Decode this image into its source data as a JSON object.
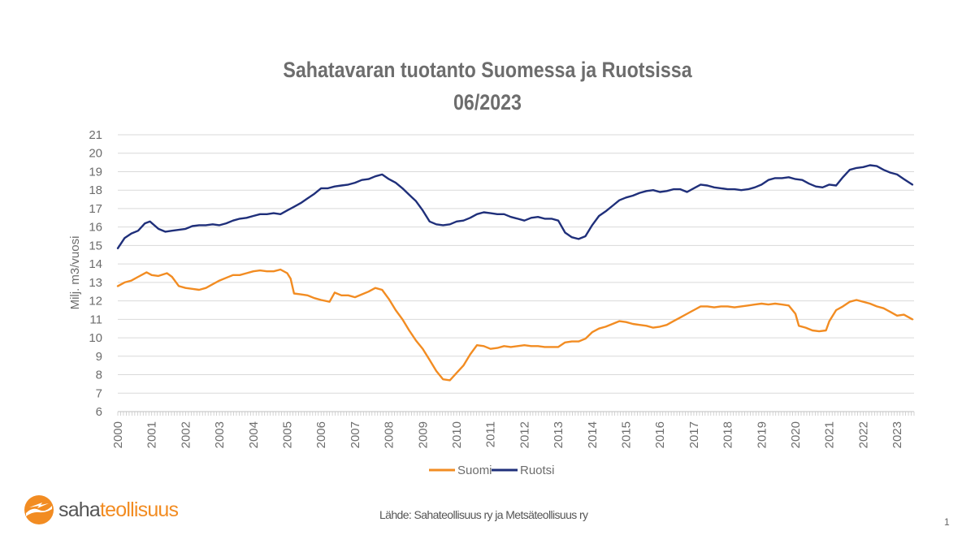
{
  "title_line1": "Sahatavaran tuotanto Suomessa ja Ruotsissa",
  "title_line2": "06/2023",
  "source": "Lähde: Sahateollisuus ry ja Metsäteollisuus ry",
  "page_number": "1",
  "logo": {
    "part1": "saha",
    "part2": "teollisuus"
  },
  "colors": {
    "suomi": "#f28c22",
    "ruotsi": "#1f2f7a",
    "grid": "#d9d9d9",
    "text": "#6d6d6d"
  },
  "chart_data": {
    "type": "line",
    "ylabel": "Milj. m3/vuosi",
    "xlabel": "",
    "ylim": [
      6,
      21
    ],
    "xlim": [
      2000.0,
      2023.5
    ],
    "yticks": [
      6,
      7,
      8,
      9,
      10,
      11,
      12,
      13,
      14,
      15,
      16,
      17,
      18,
      19,
      20,
      21
    ],
    "xticks": [
      "2000",
      "2001",
      "2002",
      "2003",
      "2004",
      "2005",
      "2006",
      "2007",
      "2008",
      "2009",
      "2010",
      "2011",
      "2012",
      "2013",
      "2014",
      "2015",
      "2016",
      "2017",
      "2018",
      "2019",
      "2020",
      "2021",
      "2022",
      "2023"
    ],
    "grid": true,
    "legend_position": "bottom",
    "series": [
      {
        "name": "Suomi",
        "x": [
          2000.0,
          2000.2,
          2000.4,
          2000.6,
          2000.85,
          2001.0,
          2001.2,
          2001.45,
          2001.6,
          2001.8,
          2002.0,
          2002.2,
          2002.4,
          2002.6,
          2002.8,
          2003.0,
          2003.2,
          2003.4,
          2003.6,
          2003.8,
          2004.0,
          2004.2,
          2004.4,
          2004.6,
          2004.8,
          2005.0,
          2005.1,
          2005.2,
          2005.4,
          2005.6,
          2005.8,
          2006.0,
          2006.25,
          2006.4,
          2006.6,
          2006.8,
          2007.0,
          2007.2,
          2007.4,
          2007.6,
          2007.8,
          2008.0,
          2008.2,
          2008.4,
          2008.6,
          2008.8,
          2009.0,
          2009.2,
          2009.4,
          2009.6,
          2009.8,
          2010.0,
          2010.2,
          2010.4,
          2010.6,
          2010.8,
          2011.0,
          2011.2,
          2011.4,
          2011.6,
          2011.8,
          2012.0,
          2012.2,
          2012.4,
          2012.6,
          2012.8,
          2013.0,
          2013.2,
          2013.4,
          2013.6,
          2013.8,
          2014.0,
          2014.2,
          2014.4,
          2014.6,
          2014.8,
          2015.0,
          2015.2,
          2015.4,
          2015.6,
          2015.8,
          2016.0,
          2016.2,
          2016.4,
          2016.6,
          2016.8,
          2017.0,
          2017.2,
          2017.4,
          2017.6,
          2017.8,
          2018.0,
          2018.2,
          2018.4,
          2018.6,
          2018.8,
          2019.0,
          2019.2,
          2019.4,
          2019.6,
          2019.8,
          2020.0,
          2020.1,
          2020.3,
          2020.5,
          2020.7,
          2020.9,
          2021.0,
          2021.2,
          2021.4,
          2021.6,
          2021.8,
          2022.0,
          2022.2,
          2022.4,
          2022.6,
          2022.8,
          2023.0,
          2023.2,
          2023.45
        ],
        "values": [
          12.8,
          13.0,
          13.1,
          13.3,
          13.55,
          13.4,
          13.35,
          13.5,
          13.3,
          12.8,
          12.7,
          12.65,
          12.6,
          12.7,
          12.9,
          13.1,
          13.25,
          13.4,
          13.4,
          13.5,
          13.6,
          13.65,
          13.6,
          13.6,
          13.7,
          13.5,
          13.2,
          12.4,
          12.35,
          12.3,
          12.15,
          12.05,
          11.95,
          12.45,
          12.3,
          12.3,
          12.2,
          12.35,
          12.5,
          12.7,
          12.6,
          12.1,
          11.5,
          11.0,
          10.4,
          9.85,
          9.4,
          8.8,
          8.2,
          7.75,
          7.7,
          8.1,
          8.5,
          9.1,
          9.6,
          9.55,
          9.4,
          9.45,
          9.55,
          9.5,
          9.55,
          9.6,
          9.55,
          9.55,
          9.5,
          9.5,
          9.5,
          9.75,
          9.8,
          9.8,
          9.95,
          10.3,
          10.5,
          10.6,
          10.75,
          10.9,
          10.85,
          10.75,
          10.7,
          10.65,
          10.55,
          10.6,
          10.7,
          10.9,
          11.1,
          11.3,
          11.5,
          11.7,
          11.7,
          11.65,
          11.7,
          11.7,
          11.65,
          11.7,
          11.75,
          11.8,
          11.85,
          11.8,
          11.85,
          11.8,
          11.75,
          11.3,
          10.65,
          10.55,
          10.4,
          10.35,
          10.4,
          10.9,
          11.5,
          11.7,
          11.95,
          12.05,
          11.95,
          11.85,
          11.7,
          11.6,
          11.4,
          11.2,
          11.25,
          11.0
        ],
        "color": "#f28c22"
      },
      {
        "name": "Ruotsi",
        "x": [
          2000.0,
          2000.2,
          2000.4,
          2000.6,
          2000.8,
          2000.95,
          2001.2,
          2001.4,
          2001.6,
          2001.8,
          2002.0,
          2002.2,
          2002.4,
          2002.6,
          2002.8,
          2003.0,
          2003.2,
          2003.4,
          2003.6,
          2003.8,
          2004.0,
          2004.2,
          2004.4,
          2004.6,
          2004.8,
          2005.0,
          2005.2,
          2005.4,
          2005.6,
          2005.8,
          2006.0,
          2006.2,
          2006.4,
          2006.6,
          2006.8,
          2007.0,
          2007.2,
          2007.4,
          2007.6,
          2007.8,
          2008.0,
          2008.2,
          2008.4,
          2008.6,
          2008.8,
          2009.0,
          2009.2,
          2009.4,
          2009.6,
          2009.8,
          2010.0,
          2010.2,
          2010.4,
          2010.6,
          2010.8,
          2011.0,
          2011.2,
          2011.4,
          2011.6,
          2011.8,
          2012.0,
          2012.2,
          2012.4,
          2012.6,
          2012.8,
          2013.0,
          2013.2,
          2013.4,
          2013.6,
          2013.8,
          2014.0,
          2014.2,
          2014.4,
          2014.6,
          2014.8,
          2015.0,
          2015.2,
          2015.4,
          2015.6,
          2015.8,
          2016.0,
          2016.2,
          2016.4,
          2016.6,
          2016.8,
          2017.0,
          2017.2,
          2017.4,
          2017.6,
          2017.8,
          2018.0,
          2018.2,
          2018.4,
          2018.6,
          2018.8,
          2019.0,
          2019.2,
          2019.4,
          2019.6,
          2019.8,
          2020.0,
          2020.2,
          2020.4,
          2020.6,
          2020.8,
          2021.0,
          2021.2,
          2021.4,
          2021.6,
          2021.8,
          2022.0,
          2022.2,
          2022.4,
          2022.6,
          2022.8,
          2023.0,
          2023.2,
          2023.45
        ],
        "values": [
          14.85,
          15.4,
          15.65,
          15.8,
          16.2,
          16.3,
          15.9,
          15.75,
          15.8,
          15.85,
          15.9,
          16.05,
          16.1,
          16.1,
          16.15,
          16.1,
          16.2,
          16.35,
          16.45,
          16.5,
          16.6,
          16.7,
          16.7,
          16.75,
          16.7,
          16.9,
          17.1,
          17.3,
          17.55,
          17.8,
          18.1,
          18.1,
          18.2,
          18.25,
          18.3,
          18.4,
          18.55,
          18.6,
          18.75,
          18.85,
          18.6,
          18.4,
          18.1,
          17.75,
          17.4,
          16.9,
          16.3,
          16.15,
          16.1,
          16.15,
          16.3,
          16.35,
          16.5,
          16.7,
          16.8,
          16.75,
          16.7,
          16.7,
          16.55,
          16.45,
          16.35,
          16.5,
          16.55,
          16.45,
          16.45,
          16.35,
          15.7,
          15.45,
          15.35,
          15.5,
          16.1,
          16.6,
          16.85,
          17.15,
          17.45,
          17.6,
          17.7,
          17.85,
          17.95,
          18.0,
          17.9,
          17.95,
          18.05,
          18.05,
          17.9,
          18.1,
          18.3,
          18.25,
          18.15,
          18.1,
          18.05,
          18.05,
          18.0,
          18.05,
          18.15,
          18.3,
          18.55,
          18.65,
          18.65,
          18.7,
          18.6,
          18.55,
          18.35,
          18.2,
          18.15,
          18.3,
          18.25,
          18.7,
          19.1,
          19.2,
          19.25,
          19.35,
          19.3,
          19.1,
          18.95,
          18.85,
          18.6,
          18.3
        ],
        "color": "#1f2f7a"
      }
    ]
  }
}
